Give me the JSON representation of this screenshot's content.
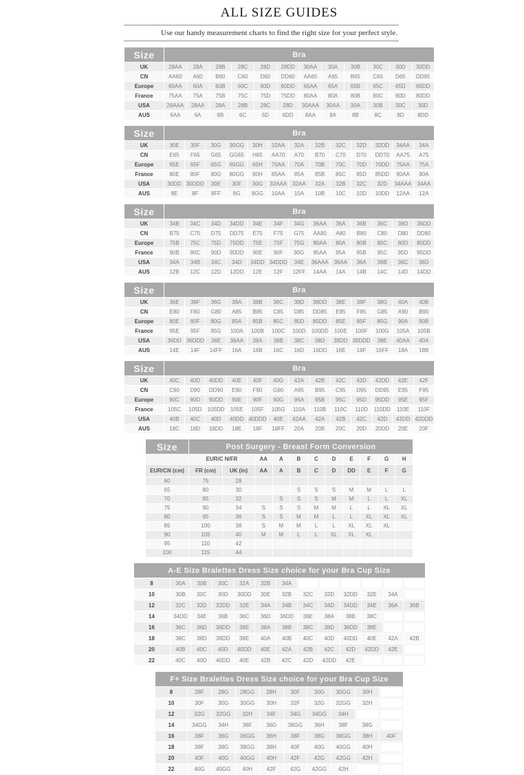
{
  "page": {
    "title": "ALL SIZE GUIDES",
    "subtitle": "Use our handy measurement charts to find the right size for your perfect style."
  },
  "labels": {
    "size": "Size",
    "bra": "Bra"
  },
  "colors": {
    "header_bg": "#a9a9a9",
    "header_text": "#f7f7f7",
    "stripe_dark": "#ececec",
    "stripe_light": "#f8f8f8",
    "cell_text": "#7b7b7b",
    "label_text": "#474747"
  },
  "bra_tables": [
    {
      "rows": [
        {
          "label": "UK",
          "cells": [
            "28AA",
            "28A",
            "28B",
            "28C",
            "28D",
            "28DD",
            "30AA",
            "30A",
            "30B",
            "30C",
            "30D",
            "30DD"
          ]
        },
        {
          "label": "CN",
          "cells": [
            "AA60",
            "A60",
            "B60",
            "C60",
            "D60",
            "DD60",
            "AA65",
            "A65",
            "B65",
            "C65",
            "D65",
            "DD65"
          ]
        },
        {
          "label": "Europe",
          "cells": [
            "60AA",
            "60A",
            "60B",
            "60C",
            "60D",
            "60DD",
            "65AA",
            "65A",
            "65B",
            "65C",
            "65D",
            "65DD"
          ]
        },
        {
          "label": "France",
          "cells": [
            "75AA",
            "75A",
            "75B",
            "75C",
            "75D",
            "75DD",
            "80AA",
            "80A",
            "80B",
            "80C",
            "80D",
            "80DD"
          ]
        },
        {
          "label": "USA",
          "cells": [
            "28AAA",
            "28AA",
            "28A",
            "28B",
            "28C",
            "28D",
            "30AAA",
            "30AA",
            "30A",
            "30B",
            "30C",
            "30D"
          ]
        },
        {
          "label": "AUS",
          "cells": [
            "6AA",
            "6A",
            "6B",
            "6C",
            "6D",
            "6DD",
            "8AA",
            "8A",
            "8B",
            "8C",
            "8D",
            "8DD"
          ]
        }
      ]
    },
    {
      "rows": [
        {
          "label": "UK",
          "cells": [
            "30E",
            "30F",
            "30G",
            "30GG",
            "30H",
            "32AA",
            "32A",
            "32B",
            "32C",
            "32D",
            "32DD",
            "34AA",
            "34A"
          ]
        },
        {
          "label": "CN",
          "cells": [
            "E65",
            "F65",
            "G65",
            "GG65",
            "H65",
            "AA70",
            "A70",
            "B70",
            "C70",
            "D70",
            "DD70",
            "AA75",
            "A75"
          ]
        },
        {
          "label": "Europe",
          "cells": [
            "65E",
            "65F",
            "65G",
            "65GG",
            "65H",
            "70AA",
            "70A",
            "70B",
            "70C",
            "70D",
            "70DD",
            "75AA",
            "75A"
          ]
        },
        {
          "label": "France",
          "cells": [
            "80E",
            "80F",
            "80G",
            "80GG",
            "80H",
            "85AA",
            "85A",
            "85B",
            "85C",
            "85D",
            "85DD",
            "90AA",
            "90A"
          ]
        },
        {
          "label": "USA",
          "cells": [
            "30DD",
            "30DDD",
            "30E",
            "30F",
            "30G",
            "32AAA",
            "32AA",
            "32A",
            "32B",
            "32C",
            "32D",
            "34AAA",
            "34AA"
          ]
        },
        {
          "label": "AUS",
          "cells": [
            "8E",
            "8F",
            "8FF",
            "8G",
            "8GG",
            "10AA",
            "10A",
            "10B",
            "10C",
            "10D",
            "10DD",
            "12AA",
            "12A"
          ]
        }
      ]
    },
    {
      "rows": [
        {
          "label": "UK",
          "cells": [
            "34B",
            "34C",
            "34D",
            "34DD",
            "34E",
            "34F",
            "34G",
            "36AA",
            "36A",
            "36B",
            "36C",
            "36D",
            "36DD"
          ]
        },
        {
          "label": "CN",
          "cells": [
            "B75",
            "C75",
            "D75",
            "DD75",
            "E75",
            "F75",
            "G75",
            "AA80",
            "A80",
            "B80",
            "C80",
            "D80",
            "DD80"
          ]
        },
        {
          "label": "Europe",
          "cells": [
            "75B",
            "75C",
            "75D",
            "75DD",
            "75E",
            "75F",
            "75G",
            "80AA",
            "80A",
            "80B",
            "80C",
            "80D",
            "80DD"
          ]
        },
        {
          "label": "France",
          "cells": [
            "90B",
            "90C",
            "90D",
            "90DD",
            "90E",
            "90F",
            "90G",
            "95AA",
            "95A",
            "95B",
            "95C",
            "95D",
            "95DD"
          ]
        },
        {
          "label": "USA",
          "cells": [
            "34A",
            "34B",
            "34C",
            "34D",
            "34DD",
            "34DDD",
            "34E",
            "36AAA",
            "36AA",
            "36A",
            "36B",
            "36C",
            "36D"
          ]
        },
        {
          "label": "AUS",
          "cells": [
            "12B",
            "12C",
            "12D",
            "12DD",
            "12E",
            "12F",
            "12FF",
            "14AA",
            "14A",
            "14B",
            "14C",
            "14D",
            "14DD"
          ]
        }
      ]
    },
    {
      "rows": [
        {
          "label": "UK",
          "cells": [
            "36E",
            "36F",
            "36G",
            "38A",
            "38B",
            "38C",
            "38D",
            "38DD",
            "38E",
            "38F",
            "38G",
            "40A",
            "40B"
          ]
        },
        {
          "label": "CN",
          "cells": [
            "E80",
            "F80",
            "G80",
            "A85",
            "B85",
            "C85",
            "D85",
            "DD85",
            "E85",
            "F85",
            "G85",
            "A90",
            "B90"
          ]
        },
        {
          "label": "Europe",
          "cells": [
            "80E",
            "80F",
            "80G",
            "85A",
            "85B",
            "85C",
            "85D",
            "85DD",
            "85E",
            "85F",
            "85G",
            "90A",
            "90B"
          ]
        },
        {
          "label": "France",
          "cells": [
            "95E",
            "95F",
            "95G",
            "100A",
            "100B",
            "100C",
            "100D",
            "100DD",
            "100E",
            "100F",
            "100G",
            "105A",
            "105B"
          ]
        },
        {
          "label": "USA",
          "cells": [
            "36DD",
            "36DDD",
            "36E",
            "38AA",
            "38A",
            "38B",
            "38C",
            "38D",
            "38DD",
            "38DDD",
            "38E",
            "40AA",
            "40A"
          ]
        },
        {
          "label": "AUS",
          "cells": [
            "14E",
            "14F",
            "14FF",
            "16A",
            "16B",
            "16C",
            "16D",
            "16DD",
            "16E",
            "16F",
            "16FF",
            "18A",
            "18B"
          ]
        }
      ]
    },
    {
      "rows": [
        {
          "label": "UK",
          "cells": [
            "40C",
            "40D",
            "40DD",
            "40E",
            "40F",
            "40G",
            "42A",
            "42B",
            "42C",
            "42D",
            "42DD",
            "42E",
            "42F"
          ]
        },
        {
          "label": "CN",
          "cells": [
            "C90",
            "D90",
            "DD90",
            "E90",
            "F90",
            "G90",
            "A95",
            "B95",
            "C95",
            "D95",
            "DD95",
            "E95",
            "F95"
          ]
        },
        {
          "label": "Europe",
          "cells": [
            "90C",
            "90D",
            "90DD",
            "90E",
            "90F",
            "90G",
            "95A",
            "95B",
            "95C",
            "95D",
            "95DD",
            "95E",
            "95F"
          ]
        },
        {
          "label": "France",
          "cells": [
            "105C",
            "105D",
            "105DD",
            "105E",
            "105F",
            "105G",
            "110A",
            "110B",
            "110C",
            "110D",
            "110DD",
            "110E",
            "110F"
          ]
        },
        {
          "label": "USA",
          "cells": [
            "40B",
            "40C",
            "40D",
            "40DD",
            "40DDD",
            "40E",
            "42AA",
            "42A",
            "42B",
            "42C",
            "42D",
            "42DD",
            "42DDD"
          ]
        },
        {
          "label": "AUS",
          "cells": [
            "18C",
            "18D",
            "18DD",
            "18E",
            "18F",
            "18FF",
            "20A",
            "20B",
            "20C",
            "20D",
            "20DD",
            "20E",
            "20F"
          ]
        }
      ]
    }
  ],
  "post_surgery": {
    "title": "Post Surgery - Breast Form Conversion",
    "sub1_label": "EUR/C N/FR",
    "sub1_letters": [
      "AA",
      "A",
      "B",
      "C",
      "D",
      "E",
      "F",
      "G",
      "H"
    ],
    "sub2": [
      "EUR/CN (cm)",
      "FR (cm)",
      "UK (in)",
      "AA",
      "A",
      "B",
      "C",
      "D",
      "DD",
      "E",
      "F",
      "G"
    ],
    "rows": [
      [
        "60",
        "75",
        "28",
        "",
        "",
        "",
        "",
        "",
        "",
        "",
        "",
        ""
      ],
      [
        "65",
        "80",
        "30",
        "",
        "",
        "S",
        "S",
        "S",
        "M",
        "M",
        "L",
        "L"
      ],
      [
        "70",
        "85",
        "32",
        "",
        "S",
        "S",
        "S",
        "M",
        "M",
        "L",
        "L",
        "XL"
      ],
      [
        "75",
        "90",
        "34",
        "S",
        "S",
        "S",
        "M",
        "M",
        "L",
        "L",
        "XL",
        "XL"
      ],
      [
        "80",
        "95",
        "36",
        "S",
        "S",
        "M",
        "M",
        "L",
        "L",
        "XL",
        "XL",
        "XL"
      ],
      [
        "85",
        "100",
        "38",
        "S",
        "M",
        "M",
        "L",
        "L",
        "XL",
        "XL",
        "XL",
        ""
      ],
      [
        "90",
        "105",
        "40",
        "M",
        "M",
        "L",
        "L",
        "XL",
        "XL",
        "XL",
        "",
        ""
      ],
      [
        "95",
        "110",
        "42",
        "",
        "",
        "",
        "",
        "",
        "",
        "",
        "",
        ""
      ],
      [
        "100",
        "115",
        "44",
        "",
        "",
        "",
        "",
        "",
        "",
        "",
        "",
        ""
      ]
    ]
  },
  "bralettes_ae": {
    "title": "A-E Size Bralettes Dress Size choice for your Bra Cup Size",
    "columns": 12,
    "rows": [
      {
        "size": "8",
        "cells": [
          "30A",
          "30B",
          "30C",
          "32A",
          "32B",
          "34A"
        ]
      },
      {
        "size": "10",
        "cells": [
          "30B",
          "30C",
          "30D",
          "30DD",
          "30E",
          "32B",
          "32C",
          "32D",
          "32DD",
          "32E",
          "34A"
        ]
      },
      {
        "size": "12",
        "cells": [
          "32C",
          "32D",
          "32DD",
          "32E",
          "34A",
          "34B",
          "34C",
          "34D",
          "34DD",
          "34E",
          "36A",
          "36B"
        ]
      },
      {
        "size": "14",
        "cells": [
          "34DD",
          "34E",
          "36B",
          "36C",
          "36D",
          "36DD",
          "36E",
          "38A",
          "38B",
          "38C"
        ]
      },
      {
        "size": "16",
        "cells": [
          "36C",
          "36D",
          "36DD",
          "36E",
          "38A",
          "38B",
          "38C",
          "38D",
          "38DD",
          "38E"
        ]
      },
      {
        "size": "18",
        "cells": [
          "38C",
          "38D",
          "38DD",
          "38E",
          "40A",
          "40B",
          "40C",
          "40D",
          "40DD",
          "40E",
          "42A",
          "42B"
        ]
      },
      {
        "size": "20",
        "cells": [
          "40B",
          "40C",
          "40D",
          "40DD",
          "40E",
          "42A",
          "42B",
          "42C",
          "42D",
          "42DD",
          "42E"
        ]
      },
      {
        "size": "22",
        "cells": [
          "40C",
          "40D",
          "40DD",
          "40E",
          "42B",
          "42C",
          "42D",
          "42DD",
          "42E"
        ]
      }
    ]
  },
  "bralettes_fplus": {
    "title": "F+ Size Bralettes Dress Size choice for your Bra Cup Size",
    "columns": 9,
    "rows": [
      {
        "size": "8",
        "cells": [
          "28F",
          "28G",
          "28GG",
          "28H",
          "30F",
          "30G",
          "30GG",
          "30H"
        ]
      },
      {
        "size": "10",
        "cells": [
          "30F",
          "30G",
          "30GG",
          "30H",
          "32F",
          "32G",
          "32GG",
          "32H"
        ]
      },
      {
        "size": "12",
        "cells": [
          "32G",
          "32GG",
          "32H",
          "34F",
          "34G",
          "34GG",
          "34H"
        ]
      },
      {
        "size": "14",
        "cells": [
          "34GG",
          "34H",
          "36F",
          "36G",
          "36GG",
          "36H",
          "38F",
          "38G"
        ]
      },
      {
        "size": "16",
        "cells": [
          "36F",
          "36G",
          "36GG",
          "36H",
          "38F",
          "38G",
          "38GG",
          "38H",
          "40F"
        ]
      },
      {
        "size": "18",
        "cells": [
          "38F",
          "38G",
          "38GG",
          "38H",
          "40F",
          "40G",
          "40GG",
          "40H"
        ]
      },
      {
        "size": "20",
        "cells": [
          "40F",
          "40G",
          "40GG",
          "40H",
          "42F",
          "42G",
          "42GG",
          "42H"
        ]
      },
      {
        "size": "22",
        "cells": [
          "40G",
          "40GG",
          "40H",
          "42F",
          "42G",
          "42GG",
          "42H"
        ]
      }
    ]
  }
}
